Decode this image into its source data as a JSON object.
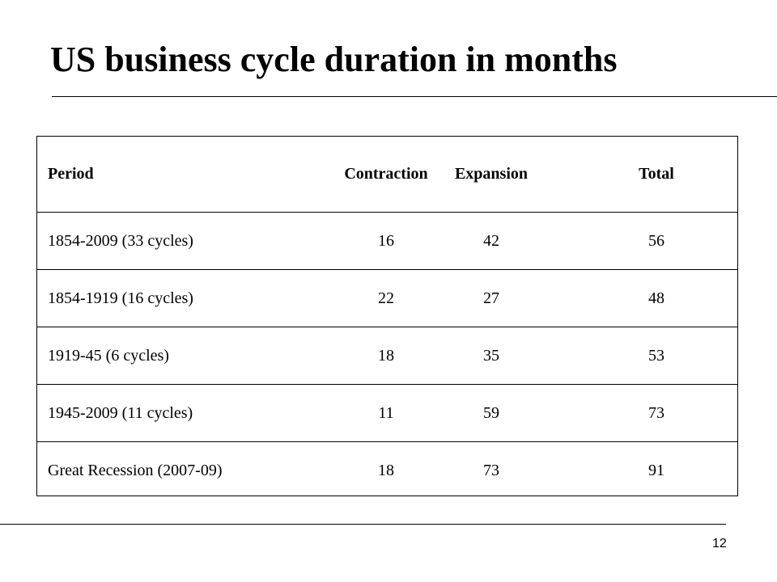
{
  "slide": {
    "title": "US business cycle duration in months",
    "page_number": "12"
  },
  "table": {
    "headers": {
      "period": "Period",
      "contraction": "Contraction",
      "expansion": "Expansion",
      "total": "Total"
    },
    "rows": [
      {
        "period": "1854-2009 (33 cycles)",
        "contraction": "16",
        "expansion": "42",
        "total": "56"
      },
      {
        "period": "1854-1919 (16 cycles)",
        "contraction": "22",
        "expansion": "27",
        "total": "48"
      },
      {
        "period": "1919-45 (6 cycles)",
        "contraction": "18",
        "expansion": "35",
        "total": "53"
      },
      {
        "period": "1945-2009 (11 cycles)",
        "contraction": "11",
        "expansion": "59",
        "total": "73"
      },
      {
        "period": "Great Recession (2007-09)",
        "contraction": "18",
        "expansion": "73",
        "total": "91"
      }
    ]
  }
}
